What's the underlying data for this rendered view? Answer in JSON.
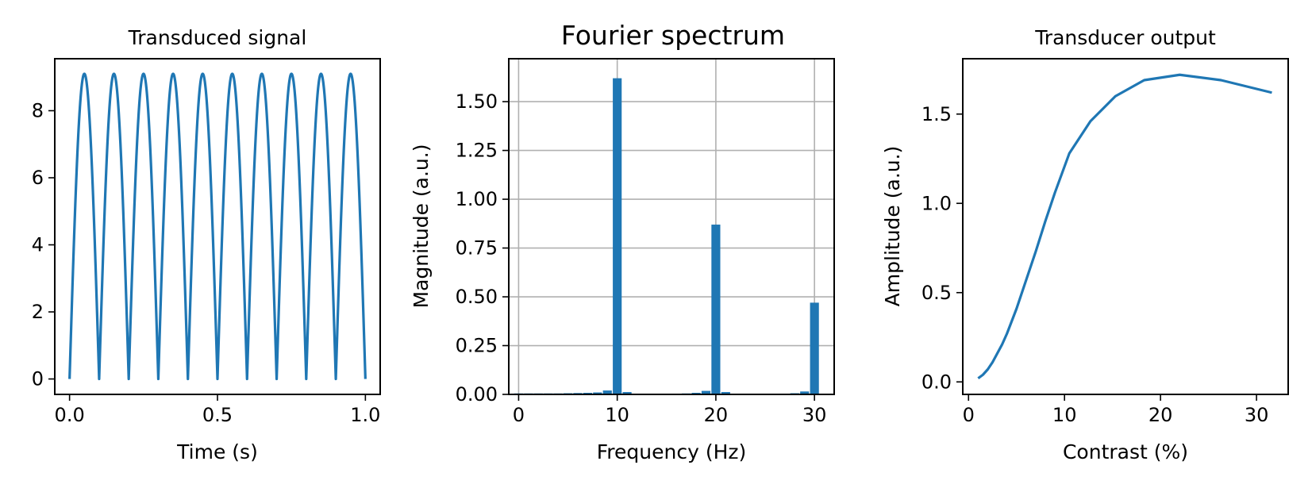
{
  "chart_data": [
    {
      "id": "signal",
      "type": "line",
      "title": "Transduced signal",
      "xlabel": "Time (s)",
      "ylabel": "",
      "xlim": [
        -0.05,
        1.05
      ],
      "ylim": [
        -0.46,
        9.55
      ],
      "xticks": [
        0.0,
        0.5,
        1.0
      ],
      "xtick_labels": [
        "0.0",
        "0.5",
        "1.0"
      ],
      "yticks": [
        0,
        2,
        4,
        6,
        8
      ],
      "ytick_labels": [
        "0",
        "2",
        "4",
        "6",
        "8"
      ],
      "grid": false,
      "color": "#1f77b4",
      "series": [
        {
          "function": "9.1 * |sin(10*pi*t)|",
          "x_range": [
            0.0,
            1.0
          ],
          "peak_value": 9.1,
          "peaks_x": [
            0.05,
            0.15,
            0.25,
            0.35,
            0.45,
            0.55,
            0.65,
            0.75,
            0.85,
            0.95
          ],
          "zeros_x": [
            0.0,
            0.1,
            0.2,
            0.3,
            0.4,
            0.5,
            0.6,
            0.7,
            0.8,
            0.9,
            1.0
          ]
        }
      ]
    },
    {
      "id": "spectrum",
      "type": "bar",
      "title": "Fourier spectrum",
      "xlabel": "Frequency (Hz)",
      "ylabel": "Magnitude (a.u.)",
      "xlim": [
        -1.0,
        32.0
      ],
      "ylim": [
        0.0,
        1.72
      ],
      "xticks": [
        0,
        10,
        20,
        30
      ],
      "xtick_labels": [
        "0",
        "10",
        "20",
        "30"
      ],
      "yticks": [
        0.0,
        0.25,
        0.5,
        0.75,
        1.0,
        1.25,
        1.5
      ],
      "ytick_labels": [
        "0.00",
        "0.25",
        "0.50",
        "0.75",
        "1.00",
        "1.25",
        "1.50"
      ],
      "grid": true,
      "color": "#1f77b4",
      "bar_width": 0.9,
      "x": [
        0,
        1,
        2,
        3,
        4,
        5,
        6,
        7,
        8,
        9,
        10,
        11,
        12,
        13,
        14,
        15,
        16,
        17,
        18,
        19,
        20,
        21,
        22,
        23,
        24,
        25,
        26,
        27,
        28,
        29,
        30
      ],
      "values": [
        0.005,
        0.005,
        0.005,
        0.005,
        0.005,
        0.006,
        0.007,
        0.008,
        0.01,
        0.02,
        1.62,
        0.012,
        0.003,
        0.002,
        0.002,
        0.002,
        0.003,
        0.005,
        0.008,
        0.018,
        0.87,
        0.012,
        0.003,
        0.002,
        0.002,
        0.002,
        0.002,
        0.004,
        0.006,
        0.015,
        0.47
      ]
    },
    {
      "id": "output",
      "type": "line",
      "title": "Transducer output",
      "xlabel": "Contrast (%)",
      "ylabel": "Amplitude (a.u.)",
      "xlim": [
        -0.6,
        33.3
      ],
      "ylim": [
        -0.07,
        1.81
      ],
      "xticks": [
        0,
        10,
        20,
        30
      ],
      "xtick_labels": [
        "0",
        "10",
        "20",
        "30"
      ],
      "yticks": [
        0.0,
        0.5,
        1.0,
        1.5
      ],
      "ytick_labels": [
        "0.0",
        "0.5",
        "1.0",
        "1.5"
      ],
      "grid": false,
      "color": "#1f77b4",
      "series": [
        {
          "x": [
            1.0,
            1.5,
            2.0,
            2.5,
            3.0,
            3.5,
            4.0,
            5.0,
            6.0,
            7.0,
            8.0,
            9.0,
            10.5,
            12.7,
            15.3,
            18.3,
            22.0,
            26.3,
            31.6
          ],
          "y": [
            0.02,
            0.04,
            0.07,
            0.11,
            0.16,
            0.21,
            0.27,
            0.41,
            0.57,
            0.73,
            0.9,
            1.06,
            1.28,
            1.46,
            1.6,
            1.69,
            1.72,
            1.69,
            1.62
          ]
        }
      ]
    }
  ]
}
